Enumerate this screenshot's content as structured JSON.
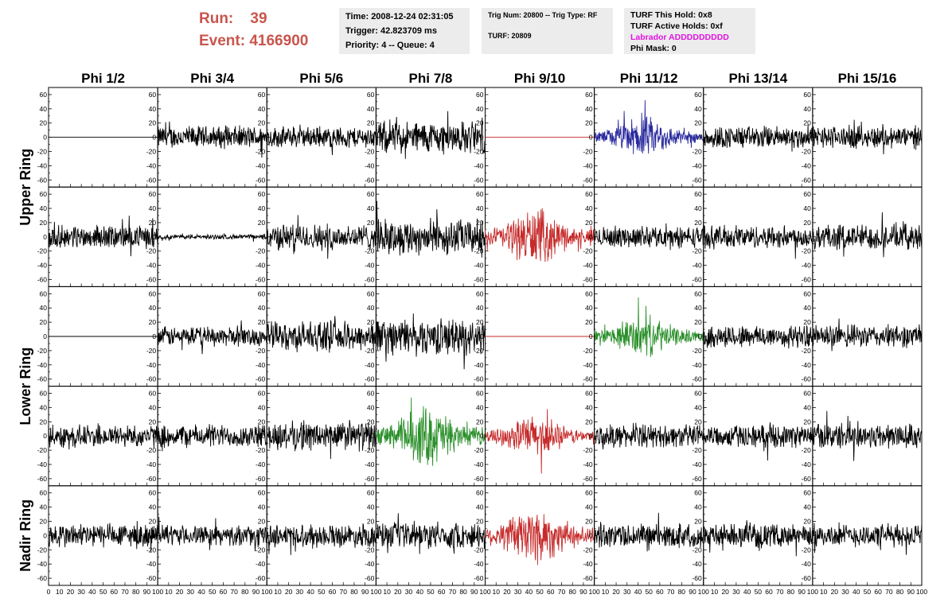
{
  "header": {
    "run_label": "Run:",
    "run_value": "39",
    "event_label": "Event:",
    "event_value": "4166900"
  },
  "info1": {
    "time": "Time: 2008-12-24 02:31:05",
    "trigger": "Trigger: 42.823709 ms",
    "priority": "Priority: 4 -- Queue: 4"
  },
  "info2": {
    "trig": "Trig Num: 20800 -- Trig Type: RF",
    "turf": "TURF: 20809"
  },
  "info3": {
    "this_hold": "TURF This Hold: 0x8",
    "active_holds": "TURF Active Holds: 0xf",
    "labrador": "Labrador ADDDDDDDDD",
    "phi_mask": "Phi Mask: 0"
  },
  "colors": {
    "trace_default": "#000000",
    "trace_red": "#c62a2a",
    "trace_blue": "#2a2a9e",
    "trace_green": "#2a8f2a",
    "run_text": "#c8554d",
    "labrador_text": "#e014e0",
    "info_bg": "#ececec"
  },
  "chart_data": {
    "type": "line",
    "title": "",
    "columns": [
      "Phi 1/2",
      "Phi 3/4",
      "Phi 5/6",
      "Phi 7/8",
      "Phi 9/10",
      "Phi 11/12",
      "Phi 13/14",
      "Phi 15/16"
    ],
    "ring_labels": [
      "Upper Ring",
      "Lower Ring",
      "Nadir Ring"
    ],
    "rows_per_ring": [
      2,
      2,
      1
    ],
    "ylim": [
      -70,
      70
    ],
    "yticks": [
      60,
      40,
      20,
      0,
      -20,
      -40,
      -60
    ],
    "xlim": [
      0,
      100
    ],
    "xticks": [
      0,
      10,
      20,
      30,
      40,
      50,
      60,
      70,
      80,
      90,
      100
    ],
    "grid": false,
    "panels": [
      [
        {
          "amp": 0,
          "color": "black"
        },
        {
          "amp": 14,
          "color": "black"
        },
        {
          "amp": 13,
          "color": "black"
        },
        {
          "amp": 20,
          "color": "black"
        },
        {
          "amp": 0,
          "color": "red"
        },
        {
          "amp": 16,
          "color": "blue",
          "burst": true
        },
        {
          "amp": 14,
          "color": "black"
        },
        {
          "amp": 14,
          "color": "black"
        }
      ],
      [
        {
          "amp": 14,
          "color": "black"
        },
        {
          "amp": 3,
          "color": "black"
        },
        {
          "amp": 16,
          "color": "black"
        },
        {
          "amp": 22,
          "color": "black"
        },
        {
          "amp": 22,
          "color": "red",
          "burst": true
        },
        {
          "amp": 13,
          "color": "black"
        },
        {
          "amp": 14,
          "color": "black"
        },
        {
          "amp": 16,
          "color": "black"
        }
      ],
      [
        {
          "amp": 0,
          "color": "black"
        },
        {
          "amp": 12,
          "color": "black"
        },
        {
          "amp": 18,
          "color": "black"
        },
        {
          "amp": 22,
          "color": "black"
        },
        {
          "amp": 0,
          "color": "red"
        },
        {
          "amp": 16,
          "color": "green",
          "burst": true
        },
        {
          "amp": 14,
          "color": "black"
        },
        {
          "amp": 14,
          "color": "black"
        }
      ],
      [
        {
          "amp": 14,
          "color": "black"
        },
        {
          "amp": 14,
          "color": "black"
        },
        {
          "amp": 18,
          "color": "black"
        },
        {
          "amp": 24,
          "color": "green",
          "burst": true
        },
        {
          "amp": 16,
          "color": "red",
          "burst": true
        },
        {
          "amp": 14,
          "color": "black"
        },
        {
          "amp": 14,
          "color": "black"
        },
        {
          "amp": 16,
          "color": "black"
        }
      ],
      [
        {
          "amp": 15,
          "color": "black"
        },
        {
          "amp": 12,
          "color": "black"
        },
        {
          "amp": 14,
          "color": "black"
        },
        {
          "amp": 16,
          "color": "black"
        },
        {
          "amp": 24,
          "color": "red",
          "burst": true
        },
        {
          "amp": 15,
          "color": "black"
        },
        {
          "amp": 14,
          "color": "black"
        },
        {
          "amp": 14,
          "color": "black"
        }
      ]
    ]
  }
}
